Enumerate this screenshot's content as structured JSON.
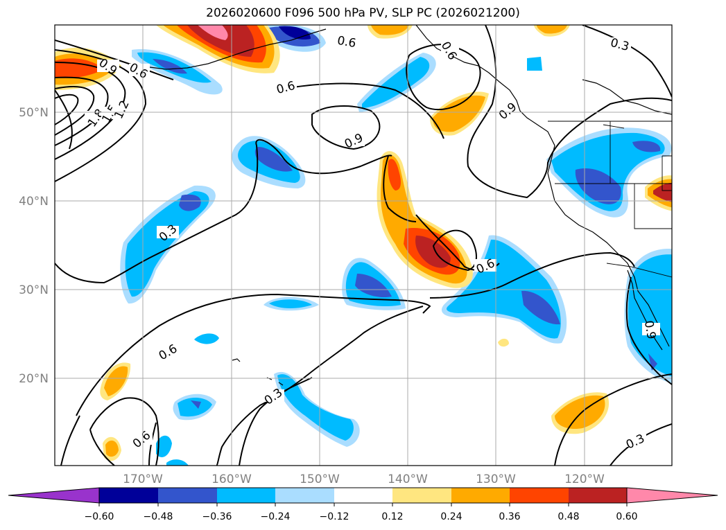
{
  "title": "2026020600 F096 500 hPa PV, SLP PC (2026021200)",
  "lat_ticks": [
    "50°N",
    "40°N",
    "30°N",
    "20°N"
  ],
  "lon_ticks": [
    "170°W",
    "160°W",
    "150°W",
    "140°W",
    "130°W",
    "120°W"
  ],
  "colorbar": {
    "ticks": [
      "−0.60",
      "−0.48",
      "−0.36",
      "−0.24",
      "−0.12",
      "0.12",
      "0.24",
      "0.36",
      "0.48",
      "0.60"
    ],
    "colors": [
      "#9933cc",
      "#000099",
      "#3355cc",
      "#00bbff",
      "#aaddff",
      "#ffffff",
      "#ffe680",
      "#ffaa00",
      "#ff4400",
      "#bb2222",
      "#ff88aa"
    ]
  },
  "contour_labels": [
    "0.6",
    "0.9",
    "0.6",
    "1.8",
    "1.5",
    "1.2",
    "0.6",
    "0.3",
    "0.9",
    "0.6",
    "0.9",
    "0.3",
    "0.6",
    "0.6",
    "0.3",
    "0.6",
    "0.3",
    "0.9"
  ],
  "colors": {
    "neg_light": "#aaddff",
    "neg_mid": "#00bbff",
    "neg_dark": "#3355cc",
    "neg_darkest": "#000099",
    "pos_light": "#ffe680",
    "pos_mid": "#ffaa00",
    "pos_orange_red": "#ff4400",
    "pos_dark": "#bb2222",
    "pos_pink": "#ff88aa"
  }
}
